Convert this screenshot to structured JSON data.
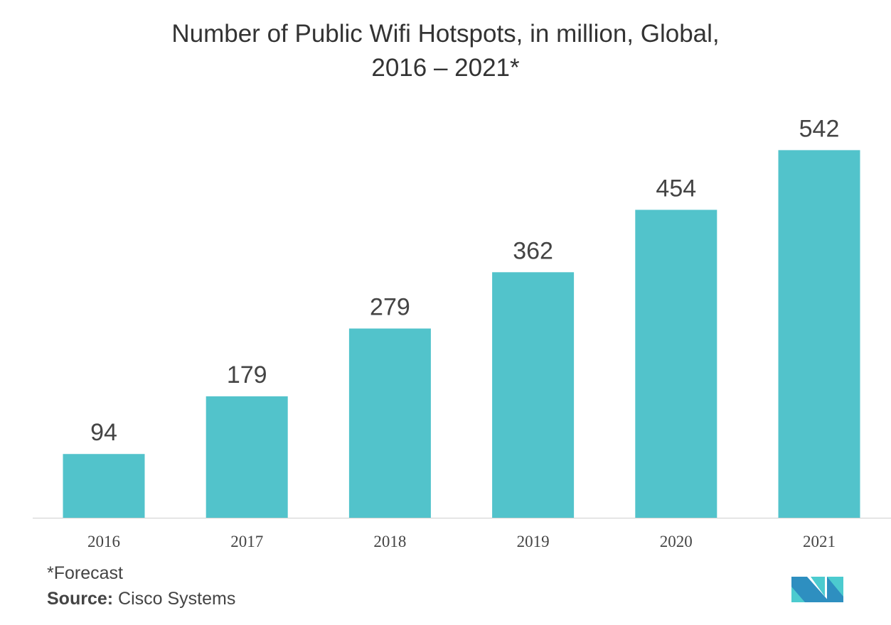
{
  "chart_data": {
    "type": "bar",
    "title_line1": "Number of Public Wifi Hotspots, in million, Global,",
    "title_line2": "2016 – 2021*",
    "categories": [
      "2016",
      "2017",
      "2018",
      "2019",
      "2020",
      "2021"
    ],
    "values": [
      94,
      179,
      279,
      362,
      454,
      542
    ],
    "xlabel": "",
    "ylabel": "",
    "ylim": [
      0,
      600
    ],
    "grid": false,
    "bar_color": "#52c3cb"
  },
  "footer": {
    "note": "*Forecast",
    "source_label": "Source:",
    "source_value": " Cisco Systems"
  },
  "logo": {
    "text": "MN",
    "colors": [
      "#2e8fc0",
      "#4ccbcf"
    ]
  }
}
